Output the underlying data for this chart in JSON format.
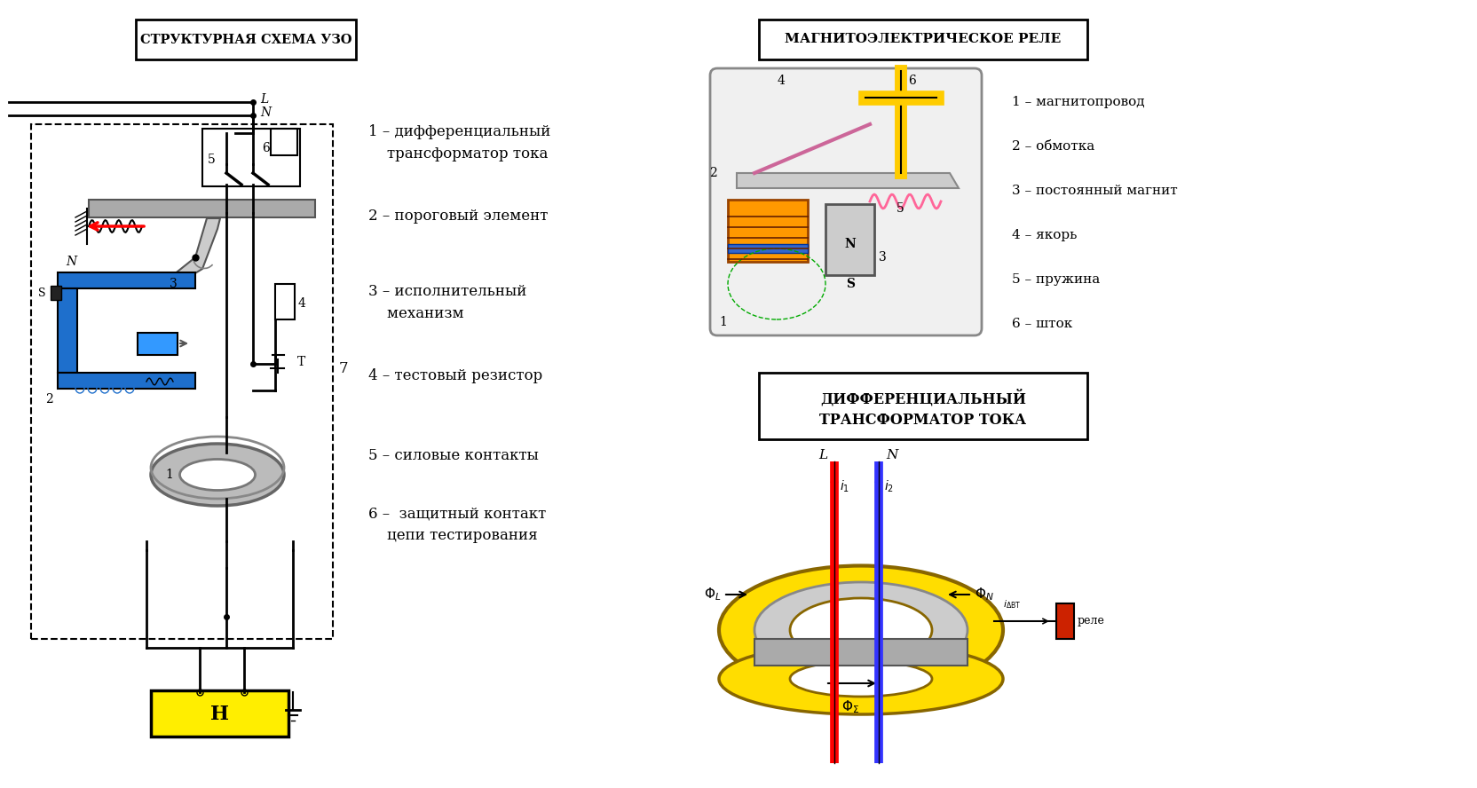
{
  "title_left": "СТРУКТУРНАЯ СХЕМА УЗО",
  "title_right_top": "МАГНИТОЭЛЕКТРИЧЕСКОЕ РЕЛЕ",
  "title_right_bottom": "ДИФФЕРЕНЦИАЛЬНЫЙ\nТРАНСФОРМАТОР ТОКА",
  "legend": [
    "1 – дифференциальный\n    трансформатор тока",
    "2 – пороговый элемент",
    "3 – исполнительный\n    механизм",
    "4 – тестовый резистор",
    "5 – силовые контакты",
    "6 –  защитный контакт\n    цепи тестирования"
  ],
  "relay_legend": [
    "1 – магнитопровод",
    "2 – обмотка",
    "3 – постоянный магнит",
    "4 – якорь",
    "5 – пружина",
    "6 – шток"
  ],
  "bg_color": "#ffffff"
}
